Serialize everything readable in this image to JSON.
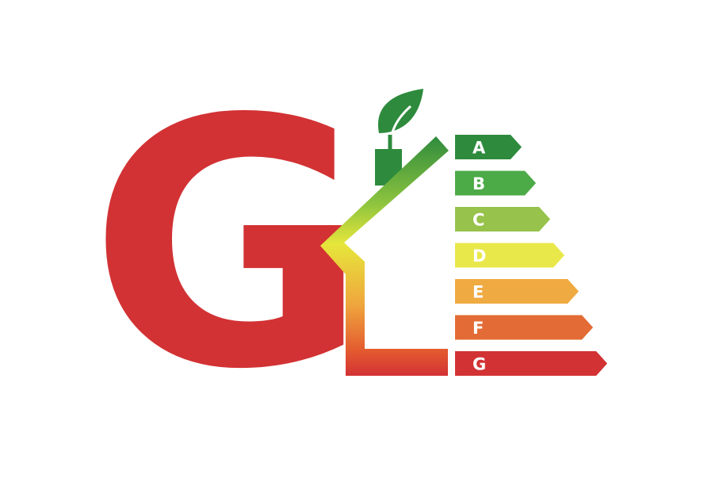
{
  "logo": {
    "letter": "G",
    "letter_color": "#d23234"
  },
  "energy_scale": {
    "classes": [
      {
        "label": "A",
        "color": "#2e8b3d"
      },
      {
        "label": "B",
        "color": "#4caa47"
      },
      {
        "label": "C",
        "color": "#97c24b"
      },
      {
        "label": "D",
        "color": "#e9e84a"
      },
      {
        "label": "E",
        "color": "#efaa42"
      },
      {
        "label": "F",
        "color": "#e36b35"
      },
      {
        "label": "G",
        "color": "#d23234"
      }
    ]
  },
  "icons": {
    "house": "house-outline-icon",
    "leaf": "leaf-icon"
  }
}
